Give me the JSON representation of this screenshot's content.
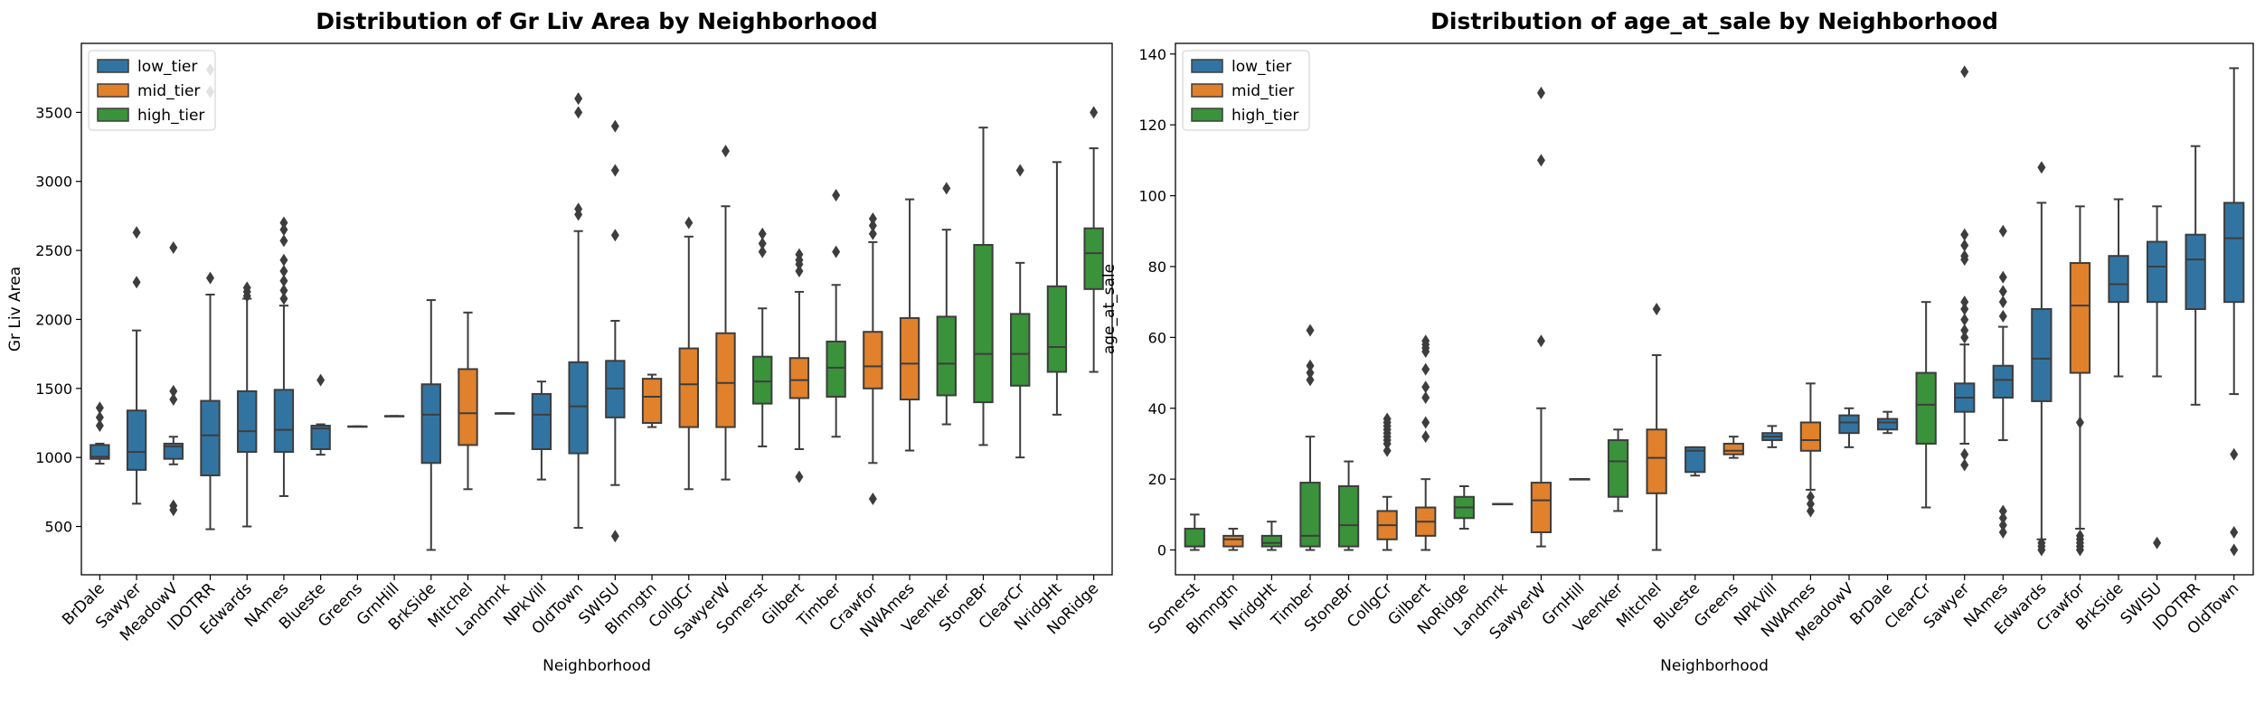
{
  "colors": {
    "low_tier": "#3274a1",
    "mid_tier": "#e1812c",
    "high_tier": "#3a923a",
    "line": "#3d3d3d",
    "axis": "#000000",
    "background": "#ffffff"
  },
  "chart_data": [
    {
      "type": "box",
      "title": "Distribution of Gr Liv Area by Neighborhood",
      "xlabel": "Neighborhood",
      "ylabel": "Gr Liv Area",
      "ylim": [
        150,
        4000
      ],
      "yticks": [
        500,
        1000,
        1500,
        2000,
        2500,
        3000,
        3500
      ],
      "grid": false,
      "legend_position": "upper-left",
      "legend": [
        "low_tier",
        "mid_tier",
        "high_tier"
      ],
      "categories": [
        "BrDale",
        "Sawyer",
        "MeadowV",
        "IDOTRR",
        "Edwards",
        "NAmes",
        "Blueste",
        "Greens",
        "GrnHill",
        "BrkSide",
        "Mitchel",
        "Landmrk",
        "NPkVill",
        "OldTown",
        "SWISU",
        "Blmngtn",
        "CollgCr",
        "SawyerW",
        "Somerst",
        "Gilbert",
        "Timber",
        "Crawfor",
        "NWAmes",
        "Veenker",
        "StoneBr",
        "ClearCr",
        "NridgHt",
        "NoRidge"
      ],
      "boxes": [
        {
          "cat": "BrDale",
          "tier": "low_tier",
          "q1": 990,
          "median": 1005,
          "q3": 1090,
          "wlo": 955,
          "whi": 1100,
          "fliers": [
            1230,
            1290,
            1360
          ]
        },
        {
          "cat": "Sawyer",
          "tier": "low_tier",
          "q1": 910,
          "median": 1040,
          "q3": 1340,
          "wlo": 665,
          "whi": 1920,
          "fliers": [
            2270,
            2630
          ]
        },
        {
          "cat": "MeadowV",
          "tier": "low_tier",
          "q1": 990,
          "median": 1080,
          "q3": 1100,
          "wlo": 950,
          "whi": 1150,
          "fliers": [
            620,
            650,
            1420,
            1480,
            2520
          ]
        },
        {
          "cat": "IDOTRR",
          "tier": "low_tier",
          "q1": 870,
          "median": 1160,
          "q3": 1410,
          "wlo": 480,
          "whi": 2180,
          "fliers": [
            2300,
            3650,
            3810
          ]
        },
        {
          "cat": "Edwards",
          "tier": "low_tier",
          "q1": 1040,
          "median": 1190,
          "q3": 1480,
          "wlo": 500,
          "whi": 2150,
          "fliers": [
            2170,
            2200,
            2230
          ]
        },
        {
          "cat": "NAmes",
          "tier": "low_tier",
          "q1": 1040,
          "median": 1200,
          "q3": 1490,
          "wlo": 720,
          "whi": 2100,
          "fliers": [
            2150,
            2210,
            2280,
            2350,
            2430,
            2570,
            2650,
            2700
          ]
        },
        {
          "cat": "Blueste",
          "tier": "low_tier",
          "q1": 1060,
          "median": 1210,
          "q3": 1230,
          "wlo": 1020,
          "whi": 1240,
          "fliers": [
            1560
          ]
        },
        {
          "cat": "Greens",
          "tier": "low_tier",
          "q1": 1225,
          "median": 1225,
          "q3": 1225,
          "wlo": 1225,
          "whi": 1225,
          "fliers": []
        },
        {
          "cat": "GrnHill",
          "tier": "low_tier",
          "q1": 1300,
          "median": 1300,
          "q3": 1300,
          "wlo": 1300,
          "whi": 1300,
          "fliers": []
        },
        {
          "cat": "BrkSide",
          "tier": "low_tier",
          "q1": 960,
          "median": 1310,
          "q3": 1530,
          "wlo": 330,
          "whi": 2140,
          "fliers": []
        },
        {
          "cat": "Mitchel",
          "tier": "mid_tier",
          "q1": 1090,
          "median": 1320,
          "q3": 1640,
          "wlo": 770,
          "whi": 2050,
          "fliers": []
        },
        {
          "cat": "Landmrk",
          "tier": "mid_tier",
          "q1": 1320,
          "median": 1320,
          "q3": 1320,
          "wlo": 1320,
          "whi": 1320,
          "fliers": []
        },
        {
          "cat": "NPkVill",
          "tier": "low_tier",
          "q1": 1060,
          "median": 1310,
          "q3": 1460,
          "wlo": 840,
          "whi": 1550,
          "fliers": []
        },
        {
          "cat": "OldTown",
          "tier": "low_tier",
          "q1": 1030,
          "median": 1370,
          "q3": 1690,
          "wlo": 490,
          "whi": 2640,
          "fliers": [
            2760,
            2800,
            3500,
            3600
          ]
        },
        {
          "cat": "SWISU",
          "tier": "low_tier",
          "q1": 1290,
          "median": 1500,
          "q3": 1700,
          "wlo": 800,
          "whi": 1990,
          "fliers": [
            430,
            2610,
            3080,
            3400
          ]
        },
        {
          "cat": "Blmngtn",
          "tier": "mid_tier",
          "q1": 1250,
          "median": 1440,
          "q3": 1570,
          "wlo": 1220,
          "whi": 1600,
          "fliers": []
        },
        {
          "cat": "CollgCr",
          "tier": "mid_tier",
          "q1": 1220,
          "median": 1530,
          "q3": 1790,
          "wlo": 770,
          "whi": 2600,
          "fliers": [
            2700
          ]
        },
        {
          "cat": "SawyerW",
          "tier": "mid_tier",
          "q1": 1220,
          "median": 1540,
          "q3": 1900,
          "wlo": 840,
          "whi": 2820,
          "fliers": [
            3220
          ]
        },
        {
          "cat": "Somerst",
          "tier": "high_tier",
          "q1": 1390,
          "median": 1550,
          "q3": 1730,
          "wlo": 1080,
          "whi": 2080,
          "fliers": [
            2490,
            2550,
            2620
          ]
        },
        {
          "cat": "Gilbert",
          "tier": "mid_tier",
          "q1": 1430,
          "median": 1560,
          "q3": 1720,
          "wlo": 1060,
          "whi": 2200,
          "fliers": [
            860,
            2350,
            2400,
            2430,
            2470
          ]
        },
        {
          "cat": "Timber",
          "tier": "high_tier",
          "q1": 1440,
          "median": 1650,
          "q3": 1840,
          "wlo": 1150,
          "whi": 2250,
          "fliers": [
            2490,
            2900
          ]
        },
        {
          "cat": "Crawfor",
          "tier": "mid_tier",
          "q1": 1500,
          "median": 1660,
          "q3": 1910,
          "wlo": 960,
          "whi": 2560,
          "fliers": [
            700,
            2620,
            2680,
            2730
          ]
        },
        {
          "cat": "NWAmes",
          "tier": "mid_tier",
          "q1": 1420,
          "median": 1680,
          "q3": 2010,
          "wlo": 1050,
          "whi": 2870,
          "fliers": []
        },
        {
          "cat": "Veenker",
          "tier": "high_tier",
          "q1": 1450,
          "median": 1680,
          "q3": 2020,
          "wlo": 1240,
          "whi": 2650,
          "fliers": [
            2950
          ]
        },
        {
          "cat": "StoneBr",
          "tier": "high_tier",
          "q1": 1400,
          "median": 1750,
          "q3": 2540,
          "wlo": 1090,
          "whi": 3390,
          "fliers": []
        },
        {
          "cat": "ClearCr",
          "tier": "high_tier",
          "q1": 1520,
          "median": 1750,
          "q3": 2040,
          "wlo": 1000,
          "whi": 2410,
          "fliers": [
            3080
          ]
        },
        {
          "cat": "NridgHt",
          "tier": "high_tier",
          "q1": 1620,
          "median": 1800,
          "q3": 2240,
          "wlo": 1310,
          "whi": 3140,
          "fliers": []
        },
        {
          "cat": "NoRidge",
          "tier": "high_tier",
          "q1": 2220,
          "median": 2480,
          "q3": 2660,
          "wlo": 1620,
          "whi": 3240,
          "fliers": [
            3500
          ]
        }
      ]
    },
    {
      "type": "box",
      "title": "Distribution of age_at_sale by Neighborhood",
      "xlabel": "Neighborhood",
      "ylabel": "age_at_sale",
      "ylim": [
        -7,
        143
      ],
      "yticks": [
        0,
        20,
        40,
        60,
        80,
        100,
        120,
        140
      ],
      "grid": false,
      "legend_position": "upper-left",
      "legend": [
        "low_tier",
        "mid_tier",
        "high_tier"
      ],
      "categories": [
        "Somerst",
        "Blmngtn",
        "NridgHt",
        "Timber",
        "StoneBr",
        "CollgCr",
        "Gilbert",
        "NoRidge",
        "Landmrk",
        "SawyerW",
        "GrnHill",
        "Veenker",
        "Mitchel",
        "Blueste",
        "Greens",
        "NPkVill",
        "NWAmes",
        "MeadowV",
        "BrDale",
        "ClearCr",
        "Sawyer",
        "NAmes",
        "Edwards",
        "Crawfor",
        "BrkSide",
        "SWISU",
        "IDOTRR",
        "OldTown"
      ],
      "boxes": [
        {
          "cat": "Somerst",
          "tier": "high_tier",
          "q1": 1,
          "median": 1,
          "q3": 6,
          "wlo": 0,
          "whi": 10,
          "fliers": []
        },
        {
          "cat": "Blmngtn",
          "tier": "mid_tier",
          "q1": 1,
          "median": 3,
          "q3": 4,
          "wlo": 0,
          "whi": 6,
          "fliers": []
        },
        {
          "cat": "NridgHt",
          "tier": "high_tier",
          "q1": 1,
          "median": 2,
          "q3": 4,
          "wlo": 0,
          "whi": 8,
          "fliers": []
        },
        {
          "cat": "Timber",
          "tier": "high_tier",
          "q1": 1,
          "median": 4,
          "q3": 19,
          "wlo": 0,
          "whi": 32,
          "fliers": [
            48,
            50,
            52,
            62
          ]
        },
        {
          "cat": "StoneBr",
          "tier": "high_tier",
          "q1": 1,
          "median": 7,
          "q3": 18,
          "wlo": 0,
          "whi": 25,
          "fliers": []
        },
        {
          "cat": "CollgCr",
          "tier": "mid_tier",
          "q1": 3,
          "median": 7,
          "q3": 11,
          "wlo": 0,
          "whi": 15,
          "fliers": [
            28,
            30,
            31,
            32,
            33,
            34,
            35,
            36,
            37
          ]
        },
        {
          "cat": "Gilbert",
          "tier": "mid_tier",
          "q1": 4,
          "median": 8,
          "q3": 12,
          "wlo": 0,
          "whi": 20,
          "fliers": [
            32,
            36,
            43,
            46,
            51,
            56,
            57,
            58,
            59
          ]
        },
        {
          "cat": "NoRidge",
          "tier": "high_tier",
          "q1": 9,
          "median": 12,
          "q3": 15,
          "wlo": 6,
          "whi": 18,
          "fliers": []
        },
        {
          "cat": "Landmrk",
          "tier": "mid_tier",
          "q1": 13,
          "median": 13,
          "q3": 13,
          "wlo": 13,
          "whi": 13,
          "fliers": []
        },
        {
          "cat": "SawyerW",
          "tier": "mid_tier",
          "q1": 5,
          "median": 14,
          "q3": 19,
          "wlo": 1,
          "whi": 40,
          "fliers": [
            59,
            110,
            129
          ]
        },
        {
          "cat": "GrnHill",
          "tier": "low_tier",
          "q1": 20,
          "median": 20,
          "q3": 20,
          "wlo": 20,
          "whi": 20,
          "fliers": []
        },
        {
          "cat": "Veenker",
          "tier": "high_tier",
          "q1": 15,
          "median": 25,
          "q3": 31,
          "wlo": 11,
          "whi": 34,
          "fliers": []
        },
        {
          "cat": "Mitchel",
          "tier": "mid_tier",
          "q1": 16,
          "median": 26,
          "q3": 34,
          "wlo": 0,
          "whi": 55,
          "fliers": [
            68
          ]
        },
        {
          "cat": "Blueste",
          "tier": "low_tier",
          "q1": 22,
          "median": 28,
          "q3": 29,
          "wlo": 21,
          "whi": 29,
          "fliers": []
        },
        {
          "cat": "Greens",
          "tier": "mid_tier",
          "q1": 27,
          "median": 28,
          "q3": 30,
          "wlo": 26,
          "whi": 32,
          "fliers": []
        },
        {
          "cat": "NPkVill",
          "tier": "low_tier",
          "q1": 31,
          "median": 32,
          "q3": 33,
          "wlo": 29,
          "whi": 35,
          "fliers": []
        },
        {
          "cat": "NWAmes",
          "tier": "mid_tier",
          "q1": 28,
          "median": 31,
          "q3": 36,
          "wlo": 17,
          "whi": 47,
          "fliers": [
            11,
            13,
            15
          ]
        },
        {
          "cat": "MeadowV",
          "tier": "low_tier",
          "q1": 33,
          "median": 36,
          "q3": 38,
          "wlo": 29,
          "whi": 40,
          "fliers": []
        },
        {
          "cat": "BrDale",
          "tier": "low_tier",
          "q1": 34,
          "median": 36,
          "q3": 37,
          "wlo": 33,
          "whi": 39,
          "fliers": []
        },
        {
          "cat": "ClearCr",
          "tier": "high_tier",
          "q1": 30,
          "median": 41,
          "q3": 50,
          "wlo": 12,
          "whi": 70,
          "fliers": []
        },
        {
          "cat": "Sawyer",
          "tier": "low_tier",
          "q1": 39,
          "median": 43,
          "q3": 47,
          "wlo": 30,
          "whi": 58,
          "fliers": [
            24,
            27,
            60,
            62,
            65,
            68,
            70,
            82,
            83,
            86,
            89,
            135
          ]
        },
        {
          "cat": "NAmes",
          "tier": "low_tier",
          "q1": 43,
          "median": 48,
          "q3": 52,
          "wlo": 31,
          "whi": 63,
          "fliers": [
            5,
            7,
            9,
            11,
            66,
            70,
            73,
            77,
            90
          ]
        },
        {
          "cat": "Edwards",
          "tier": "low_tier",
          "q1": 42,
          "median": 54,
          "q3": 68,
          "wlo": 3,
          "whi": 98,
          "fliers": [
            0,
            1,
            2,
            108
          ]
        },
        {
          "cat": "Crawfor",
          "tier": "mid_tier",
          "q1": 50,
          "median": 69,
          "q3": 81,
          "wlo": 6,
          "whi": 97,
          "fliers": [
            0,
            1,
            2,
            3,
            4,
            36
          ]
        },
        {
          "cat": "BrkSide",
          "tier": "low_tier",
          "q1": 70,
          "median": 75,
          "q3": 83,
          "wlo": 49,
          "whi": 99,
          "fliers": []
        },
        {
          "cat": "SWISU",
          "tier": "low_tier",
          "q1": 70,
          "median": 80,
          "q3": 87,
          "wlo": 49,
          "whi": 97,
          "fliers": [
            2
          ]
        },
        {
          "cat": "IDOTRR",
          "tier": "low_tier",
          "q1": 68,
          "median": 82,
          "q3": 89,
          "wlo": 41,
          "whi": 114,
          "fliers": []
        },
        {
          "cat": "OldTown",
          "tier": "low_tier",
          "q1": 70,
          "median": 88,
          "q3": 98,
          "wlo": 44,
          "whi": 136,
          "fliers": [
            0,
            5,
            27
          ]
        }
      ]
    }
  ]
}
